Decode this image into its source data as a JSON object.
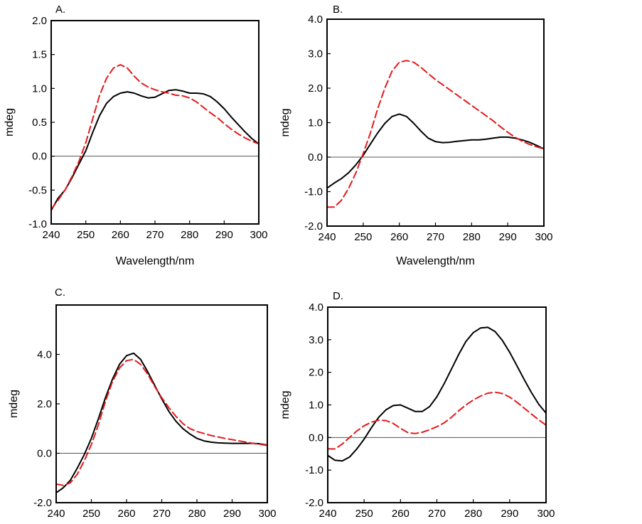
{
  "chart_data": [
    {
      "type": "line",
      "panel_label": "A.",
      "xlabel": "Wavelength/nm",
      "ylabel": "mdeg",
      "xlim": [
        240,
        300
      ],
      "ylim": [
        -1.0,
        2.0
      ],
      "xticks": [
        "240",
        "250",
        "260",
        "270",
        "280",
        "290",
        "300"
      ],
      "yticks": [
        "-1.0",
        "-0.5",
        "0.0",
        "0.5",
        "1.0",
        "1.5",
        "2.0"
      ],
      "zero_line": true,
      "series": [
        {
          "color": "#000000",
          "style": "solid",
          "x": [
            240,
            242,
            244,
            246,
            248,
            250,
            252,
            254,
            256,
            258,
            260,
            262,
            264,
            266,
            268,
            270,
            272,
            274,
            276,
            278,
            280,
            282,
            284,
            286,
            288,
            290,
            292,
            294,
            296,
            298,
            300
          ],
          "y": [
            -0.8,
            -0.62,
            -0.5,
            -0.32,
            -0.12,
            0.08,
            0.35,
            0.6,
            0.78,
            0.88,
            0.93,
            0.95,
            0.93,
            0.89,
            0.86,
            0.87,
            0.92,
            0.97,
            0.98,
            0.96,
            0.93,
            0.93,
            0.92,
            0.88,
            0.8,
            0.7,
            0.58,
            0.47,
            0.36,
            0.26,
            0.18
          ]
        },
        {
          "color": "#e41a1c",
          "style": "dashed",
          "x": [
            240,
            242,
            244,
            246,
            248,
            250,
            252,
            254,
            256,
            258,
            260,
            262,
            264,
            266,
            268,
            270,
            272,
            274,
            276,
            278,
            280,
            282,
            284,
            286,
            288,
            290,
            292,
            294,
            296,
            298,
            300
          ],
          "y": [
            -0.78,
            -0.65,
            -0.5,
            -0.3,
            -0.08,
            0.2,
            0.55,
            0.9,
            1.15,
            1.3,
            1.35,
            1.3,
            1.18,
            1.08,
            1.02,
            0.98,
            0.95,
            0.93,
            0.9,
            0.89,
            0.86,
            0.8,
            0.72,
            0.64,
            0.57,
            0.48,
            0.4,
            0.33,
            0.27,
            0.22,
            0.18
          ]
        }
      ]
    },
    {
      "type": "line",
      "panel_label": "B.",
      "xlabel": "Wavelength/nm",
      "ylabel": "mdeg",
      "xlim": [
        240,
        300
      ],
      "ylim": [
        -2.0,
        4.0
      ],
      "xticks": [
        "240",
        "250",
        "260",
        "270",
        "280",
        "290",
        "300"
      ],
      "yticks": [
        "-2.0",
        "-1.0",
        "0.0",
        "1.0",
        "2.0",
        "3.0",
        "4.0"
      ],
      "zero_line": true,
      "series": [
        {
          "color": "#000000",
          "style": "solid",
          "x": [
            240,
            242,
            244,
            246,
            248,
            250,
            252,
            254,
            256,
            258,
            260,
            262,
            264,
            266,
            268,
            270,
            272,
            274,
            276,
            278,
            280,
            282,
            284,
            286,
            288,
            290,
            292,
            294,
            296,
            298,
            300
          ],
          "y": [
            -0.9,
            -0.75,
            -0.62,
            -0.45,
            -0.22,
            0.05,
            0.38,
            0.7,
            0.98,
            1.18,
            1.25,
            1.18,
            0.98,
            0.75,
            0.55,
            0.45,
            0.42,
            0.43,
            0.46,
            0.48,
            0.5,
            0.5,
            0.52,
            0.55,
            0.58,
            0.58,
            0.55,
            0.5,
            0.43,
            0.34,
            0.24
          ]
        },
        {
          "color": "#e41a1c",
          "style": "dashed",
          "x": [
            240,
            242,
            244,
            246,
            248,
            250,
            252,
            254,
            256,
            258,
            260,
            262,
            264,
            266,
            268,
            270,
            272,
            274,
            276,
            278,
            280,
            282,
            284,
            286,
            288,
            290,
            292,
            294,
            296,
            298,
            300
          ],
          "y": [
            -1.45,
            -1.45,
            -1.25,
            -0.9,
            -0.45,
            0.1,
            0.7,
            1.4,
            2.0,
            2.5,
            2.75,
            2.8,
            2.75,
            2.6,
            2.42,
            2.25,
            2.1,
            1.95,
            1.8,
            1.65,
            1.5,
            1.35,
            1.2,
            1.05,
            0.88,
            0.72,
            0.58,
            0.46,
            0.37,
            0.3,
            0.24
          ]
        }
      ]
    },
    {
      "type": "line",
      "panel_label": "C.",
      "xlabel": "",
      "ylabel": "mdeg",
      "xlim": [
        240,
        300
      ],
      "ylim": [
        -2.0,
        6.0
      ],
      "xticks": [
        "240",
        "250",
        "260",
        "270",
        "280",
        "290",
        "300"
      ],
      "yticks": [
        "-2.0",
        "0.0",
        "2.0",
        "4.0"
      ],
      "zero_line": true,
      "series": [
        {
          "color": "#000000",
          "style": "solid",
          "x": [
            240,
            242,
            244,
            246,
            248,
            250,
            252,
            254,
            256,
            258,
            260,
            262,
            264,
            266,
            268,
            270,
            272,
            274,
            276,
            278,
            280,
            282,
            284,
            286,
            288,
            290,
            292,
            294,
            296,
            298,
            300
          ],
          "y": [
            -1.6,
            -1.4,
            -1.1,
            -0.6,
            -0.05,
            0.6,
            1.4,
            2.25,
            3.0,
            3.6,
            3.95,
            4.05,
            3.8,
            3.3,
            2.75,
            2.2,
            1.7,
            1.3,
            1.0,
            0.78,
            0.6,
            0.5,
            0.45,
            0.42,
            0.41,
            0.4,
            0.4,
            0.4,
            0.4,
            0.38,
            0.33
          ]
        },
        {
          "color": "#e41a1c",
          "style": "dashed",
          "x": [
            240,
            242,
            244,
            246,
            248,
            250,
            252,
            254,
            256,
            258,
            260,
            262,
            264,
            266,
            268,
            270,
            272,
            274,
            276,
            278,
            280,
            282,
            284,
            286,
            288,
            290,
            292,
            294,
            296,
            298,
            300
          ],
          "y": [
            -1.25,
            -1.3,
            -1.2,
            -0.85,
            -0.3,
            0.35,
            1.15,
            2.1,
            2.9,
            3.45,
            3.75,
            3.8,
            3.6,
            3.2,
            2.7,
            2.25,
            1.85,
            1.5,
            1.2,
            1.0,
            0.88,
            0.8,
            0.72,
            0.66,
            0.6,
            0.55,
            0.5,
            0.45,
            0.4,
            0.36,
            0.32
          ]
        }
      ]
    },
    {
      "type": "line",
      "panel_label": "D.",
      "xlabel": "",
      "ylabel": "mdeg",
      "xlim": [
        240,
        300
      ],
      "ylim": [
        -2.0,
        4.0
      ],
      "xticks": [
        "240",
        "250",
        "260",
        "270",
        "280",
        "290",
        "300"
      ],
      "yticks": [
        "-2.0",
        "-1.0",
        "0.0",
        "1.0",
        "2.0",
        "3.0",
        "4.0"
      ],
      "zero_line": true,
      "series": [
        {
          "color": "#000000",
          "style": "solid",
          "x": [
            240,
            242,
            244,
            246,
            248,
            250,
            252,
            254,
            256,
            258,
            260,
            262,
            264,
            266,
            268,
            270,
            272,
            274,
            276,
            278,
            280,
            282,
            284,
            286,
            288,
            290,
            292,
            294,
            296,
            298,
            300
          ],
          "y": [
            -0.55,
            -0.7,
            -0.72,
            -0.6,
            -0.35,
            -0.05,
            0.3,
            0.62,
            0.85,
            0.98,
            1.0,
            0.9,
            0.8,
            0.8,
            0.95,
            1.25,
            1.65,
            2.1,
            2.55,
            2.95,
            3.22,
            3.36,
            3.38,
            3.25,
            2.98,
            2.62,
            2.2,
            1.78,
            1.38,
            1.02,
            0.75
          ]
        },
        {
          "color": "#e41a1c",
          "style": "dashed",
          "x": [
            240,
            242,
            244,
            246,
            248,
            250,
            252,
            254,
            256,
            258,
            260,
            262,
            264,
            266,
            268,
            270,
            272,
            274,
            276,
            278,
            280,
            282,
            284,
            286,
            288,
            290,
            292,
            294,
            296,
            298,
            300
          ],
          "y": [
            -0.35,
            -0.35,
            -0.2,
            0.0,
            0.2,
            0.36,
            0.47,
            0.53,
            0.52,
            0.43,
            0.28,
            0.15,
            0.12,
            0.16,
            0.24,
            0.33,
            0.45,
            0.62,
            0.82,
            1.0,
            1.15,
            1.27,
            1.36,
            1.39,
            1.35,
            1.24,
            1.08,
            0.9,
            0.72,
            0.54,
            0.38
          ]
        }
      ]
    }
  ]
}
